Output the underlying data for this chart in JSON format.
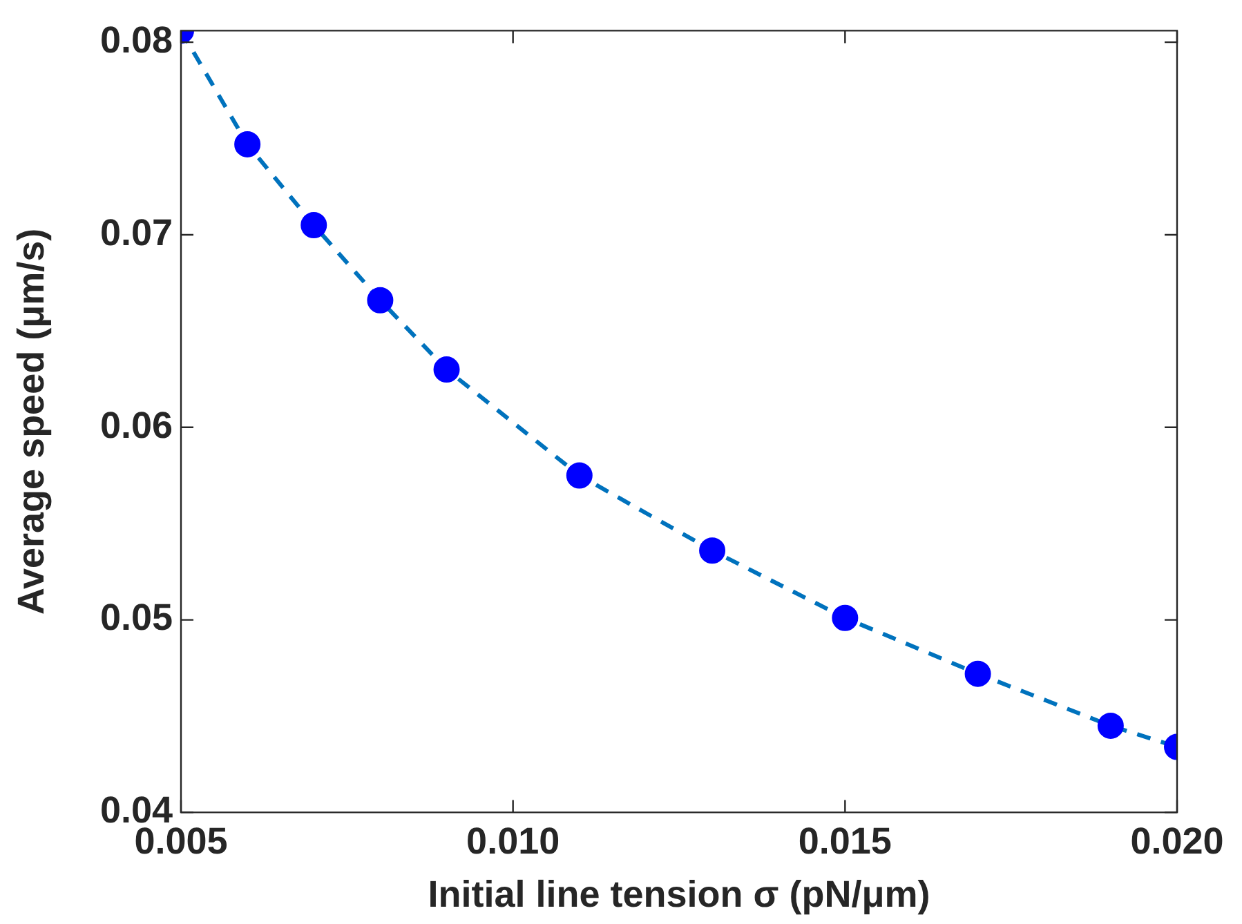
{
  "chart_data": {
    "type": "scatter",
    "xlabel": "Initial line tension σ (pN/μm)",
    "ylabel": "Average speed (μm/s)",
    "xlim": [
      0.005,
      0.02
    ],
    "xticks": [
      {
        "value": 0.005,
        "label": "0.005"
      },
      {
        "value": 0.01,
        "label": "0.010"
      },
      {
        "value": 0.015,
        "label": "0.015"
      },
      {
        "value": 0.02,
        "label": "0.020"
      }
    ],
    "ylim": [
      0.04,
      0.0806
    ],
    "yticks": [
      {
        "value": 0.04,
        "label": "0.04"
      },
      {
        "value": 0.05,
        "label": "0.05"
      },
      {
        "value": 0.06,
        "label": "0.06"
      },
      {
        "value": 0.07,
        "label": "0.07"
      },
      {
        "value": 0.08,
        "label": "0.08"
      }
    ],
    "grid": false,
    "legend": false,
    "series": [
      {
        "type": "line",
        "line_style": "dashed",
        "marker": "none",
        "color": "#0072bd",
        "x": [
          0.005,
          0.006,
          0.007,
          0.008,
          0.009,
          0.011,
          0.013,
          0.015,
          0.017,
          0.019,
          0.02
        ],
        "values": [
          0.0806,
          0.0747,
          0.0705,
          0.0666,
          0.063,
          0.0575,
          0.0536,
          0.0501,
          0.0472,
          0.0445,
          0.0434
        ]
      },
      {
        "type": "scatter",
        "marker": "circle",
        "color": "#0000ff",
        "x": [
          0.005,
          0.006,
          0.007,
          0.008,
          0.009,
          0.011,
          0.013,
          0.015,
          0.017,
          0.019,
          0.02
        ],
        "values": [
          0.0806,
          0.0747,
          0.0705,
          0.0666,
          0.063,
          0.0575,
          0.0536,
          0.0501,
          0.0472,
          0.0445,
          0.0434
        ]
      }
    ]
  }
}
